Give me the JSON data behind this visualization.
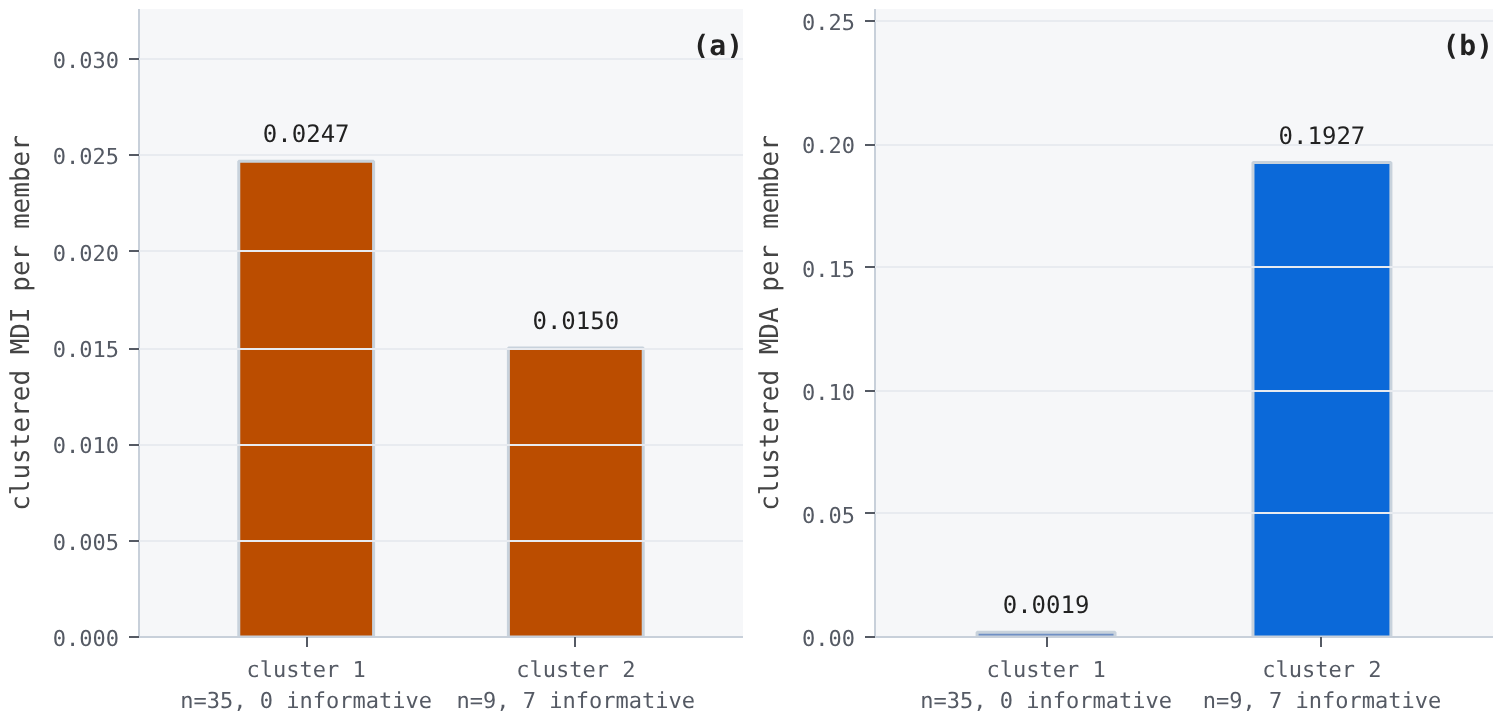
{
  "chart_data": [
    {
      "type": "bar",
      "categories": [
        "cluster 1\nn=35, 0 informative",
        "cluster 2\nn=9, 7 informative"
      ],
      "ylabel": "clustered MDI per member",
      "annotations": [
        "(a)"
      ],
      "series": [
        {
          "colors": [
            "#bb4d00",
            "#bb4d00"
          ],
          "values": [
            0.0247,
            0.015
          ]
        }
      ],
      "value_labels": [
        "0.0247",
        "0.0150"
      ],
      "ylim": [
        0,
        0.0326
      ],
      "yticks": [
        {
          "value": 0,
          "label": "0.000"
        },
        {
          "value": 0.005,
          "label": "0.005"
        },
        {
          "value": 0.01,
          "label": "0.010"
        },
        {
          "value": 0.015,
          "label": "0.015"
        },
        {
          "value": 0.02,
          "label": "0.020"
        },
        {
          "value": 0.025,
          "label": "0.025"
        },
        {
          "value": 0.03,
          "label": "0.030"
        }
      ],
      "grid": "y"
    },
    {
      "type": "bar",
      "categories": [
        "cluster 1\nn=35, 0 informative",
        "cluster 2\nn=9, 7 informative"
      ],
      "ylabel": "clustered MDA per member",
      "annotations": [
        "(b)"
      ],
      "series": [
        {
          "colors": [
            "#6f8fc4",
            "#0b69d9"
          ],
          "values": [
            0.0019,
            0.1927
          ]
        }
      ],
      "value_labels": [
        "0.0019",
        "0.1927"
      ],
      "ylim": [
        0,
        0.255
      ],
      "yticks": [
        {
          "value": 0,
          "label": "0.00"
        },
        {
          "value": 0.05,
          "label": "0.05"
        },
        {
          "value": 0.1,
          "label": "0.10"
        },
        {
          "value": 0.15,
          "label": "0.15"
        },
        {
          "value": 0.2,
          "label": "0.20"
        },
        {
          "value": 0.25,
          "label": "0.25"
        }
      ],
      "grid": "y"
    }
  ]
}
